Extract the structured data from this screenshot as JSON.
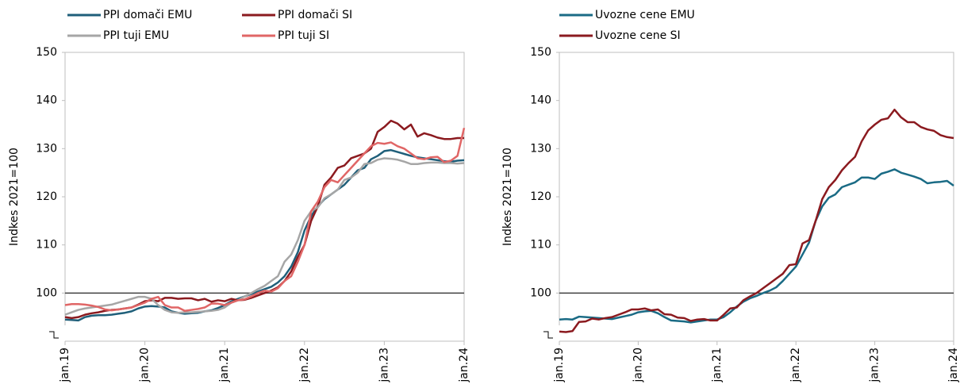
{
  "chart_data": [
    {
      "type": "line",
      "y_label": "Indkes 2021=100",
      "categories": [
        "jan.19",
        null,
        null,
        null,
        null,
        null,
        null,
        null,
        null,
        null,
        null,
        null,
        "jan.20",
        null,
        null,
        null,
        null,
        null,
        null,
        null,
        null,
        null,
        null,
        null,
        "jan.21",
        null,
        null,
        null,
        null,
        null,
        null,
        null,
        null,
        null,
        null,
        null,
        "jan.22",
        null,
        null,
        null,
        null,
        null,
        null,
        null,
        null,
        null,
        null,
        null,
        "jan.23",
        null,
        null,
        null,
        null,
        null,
        null,
        null,
        null,
        null,
        null,
        null,
        "jan.24"
      ],
      "ylim": [
        90,
        150
      ],
      "yticks": [
        100,
        110,
        120,
        130,
        140,
        150
      ],
      "reference_line": 100,
      "series": [
        {
          "name": "PPI domači EMU",
          "color": "#1f5f7a",
          "values": [
            94.5,
            94.4,
            94.3,
            95,
            95.3,
            95.4,
            95.4,
            95.5,
            95.7,
            95.9,
            96.2,
            96.8,
            97.2,
            97.3,
            97.2,
            97,
            96.2,
            95.9,
            95.7,
            95.8,
            95.9,
            96.2,
            96.4,
            96.9,
            97.5,
            98.3,
            98.8,
            99.3,
            99.8,
            100.3,
            100.8,
            101.3,
            102.2,
            103.5,
            105.5,
            108.5,
            113,
            116,
            118,
            119.5,
            120.5,
            121.5,
            122.5,
            124,
            125.5,
            126,
            127.8,
            128.5,
            129.5,
            129.7,
            129.3,
            128.9,
            128.5,
            128.2,
            128,
            127.8,
            127.6,
            127.4,
            127.3,
            127.5,
            127.6
          ]
        },
        {
          "name": "PPI domači SI",
          "color": "#8b1a1f",
          "values": [
            95,
            94.8,
            95,
            95.5,
            95.8,
            96,
            96.3,
            96.5,
            96.6,
            96.8,
            97,
            97.6,
            98.3,
            98.5,
            98.3,
            99,
            99,
            98.8,
            98.9,
            98.9,
            98.5,
            98.8,
            98.2,
            98.5,
            98.3,
            98.8,
            98.5,
            98.6,
            99,
            99.5,
            100,
            100.5,
            101.2,
            102.5,
            104.5,
            107.5,
            110,
            115,
            118,
            122.5,
            124,
            126,
            126.5,
            128,
            128.5,
            129,
            130,
            133.5,
            134.5,
            135.8,
            135.2,
            134,
            135,
            132.5,
            133.2,
            132.8,
            132.3,
            132,
            132,
            132.2,
            132.2
          ]
        },
        {
          "name": "PPI tuji EMU",
          "color": "#a6a6a6",
          "values": [
            95.5,
            96,
            96.5,
            96.8,
            97,
            97.2,
            97.4,
            97.6,
            98,
            98.4,
            98.8,
            99.2,
            99.2,
            98.8,
            97.5,
            96.5,
            96,
            95.9,
            96,
            96,
            96.1,
            96.2,
            96.3,
            96.5,
            97,
            98,
            98.5,
            99.3,
            100,
            100.8,
            101.5,
            102.5,
            103.5,
            106.5,
            108,
            111,
            115,
            117,
            117.8,
            119.7,
            120.5,
            121.5,
            123.5,
            124,
            125,
            126.8,
            127,
            127.7,
            128,
            127.9,
            127.7,
            127.3,
            126.8,
            126.8,
            127,
            127.1,
            127.1,
            127,
            127,
            126.9,
            127
          ]
        },
        {
          "name": "PPI tuji SI",
          "color": "#e06666",
          "values": [
            97.5,
            97.7,
            97.7,
            97.6,
            97.4,
            97.1,
            96.6,
            96.4,
            96.6,
            96.8,
            97,
            97.5,
            98,
            98.8,
            99.2,
            97.5,
            97,
            97,
            96.3,
            96.5,
            96.7,
            97,
            97.8,
            97.8,
            97.5,
            98,
            98.5,
            98.7,
            99.3,
            100,
            100.5,
            100.3,
            101,
            102.5,
            103.5,
            106.5,
            110,
            117,
            119,
            122,
            123.5,
            123,
            124.5,
            126,
            127.5,
            129,
            130.5,
            131.2,
            131,
            131.3,
            130.5,
            130,
            129,
            128,
            127.8,
            128.2,
            128.3,
            127.2,
            127.5,
            128.5,
            134.3
          ]
        }
      ]
    },
    {
      "type": "line",
      "y_label": "Indkes 2021=100",
      "categories": [
        "jan.19",
        null,
        null,
        null,
        null,
        null,
        null,
        null,
        null,
        null,
        null,
        null,
        "jan.20",
        null,
        null,
        null,
        null,
        null,
        null,
        null,
        null,
        null,
        null,
        null,
        "jan.21",
        null,
        null,
        null,
        null,
        null,
        null,
        null,
        null,
        null,
        null,
        null,
        "jan.22",
        null,
        null,
        null,
        null,
        null,
        null,
        null,
        null,
        null,
        null,
        null,
        "jan.23",
        null,
        null,
        null,
        null,
        null,
        null,
        null,
        null,
        null,
        null,
        null,
        "jan.24"
      ],
      "ylim": [
        90,
        150
      ],
      "yticks": [
        100,
        110,
        120,
        130,
        140,
        150
      ],
      "reference_line": 100,
      "series": [
        {
          "name": "Uvozne cene EMU",
          "color": "#1a6b85",
          "values": [
            94.5,
            94.6,
            94.5,
            95.1,
            95,
            94.9,
            94.8,
            94.7,
            94.6,
            94.9,
            95.2,
            95.5,
            96,
            96.2,
            96.3,
            95.8,
            95,
            94.3,
            94.2,
            94.1,
            93.9,
            94.1,
            94.3,
            94.5,
            94.5,
            95,
            96,
            97.2,
            98.2,
            98.9,
            99.4,
            100,
            100.5,
            101.2,
            102.5,
            104,
            105.5,
            108,
            110.5,
            115,
            118,
            119.8,
            120.5,
            122,
            122.5,
            123,
            124,
            124,
            123.7,
            124.8,
            125.2,
            125.7,
            125,
            124.6,
            124.2,
            123.7,
            122.8,
            123,
            123.1,
            123.3,
            122.3
          ]
        },
        {
          "name": "Uvozne cene SI",
          "color": "#8b1a1f",
          "values": [
            92,
            91.9,
            92.1,
            94,
            94.1,
            94.7,
            94.5,
            94.8,
            95,
            95.5,
            96,
            96.6,
            96.6,
            96.8,
            96.4,
            96.6,
            95.6,
            95.5,
            94.9,
            94.8,
            94.2,
            94.5,
            94.6,
            94.3,
            94.3,
            95.5,
            96.8,
            97,
            98.5,
            99.3,
            100,
            101,
            102,
            103,
            104,
            105.8,
            106,
            110.3,
            111,
            115,
            119.5,
            122,
            123.5,
            125.5,
            127,
            128.3,
            131.5,
            133.8,
            135,
            136,
            136.3,
            138.1,
            136.5,
            135.5,
            135.5,
            134.5,
            134,
            133.7,
            132.8,
            132.4,
            132.2
          ]
        }
      ]
    }
  ]
}
